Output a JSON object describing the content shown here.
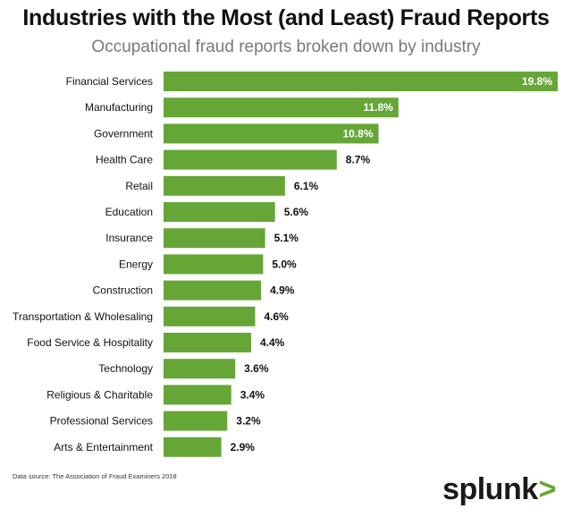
{
  "title": "Industries with the Most (and Least) Fraud Reports",
  "subtitle": "Occupational fraud reports broken down by industry",
  "source": "Data source: The Association of Fraud Examiners 2018",
  "logo": {
    "text": "splunk",
    "chevron": ">"
  },
  "colors": {
    "bar": "#65a637",
    "label_inside": "#ffffff",
    "label_outside": "#111111"
  },
  "chart_data": {
    "type": "bar",
    "orientation": "horizontal",
    "unit": "%",
    "categories": [
      "Financial Services",
      "Manufacturing",
      "Government",
      "Health Care",
      "Retail",
      "Education",
      "Insurance",
      "Energy",
      "Construction",
      "Transportation & Wholesaling",
      "Food Service & Hospitality",
      "Technology",
      "Religious & Charitable",
      "Professional Services",
      "Arts & Entertainment"
    ],
    "values": [
      19.8,
      11.8,
      10.8,
      8.7,
      6.1,
      5.6,
      5.1,
      5.0,
      4.9,
      4.6,
      4.4,
      3.6,
      3.4,
      3.2,
      2.9
    ],
    "labels": [
      "19.8%",
      "11.8%",
      "10.8%",
      "8.7%",
      "6.1%",
      "5.6%",
      "5.1%",
      "5.0%",
      "4.9%",
      "4.6%",
      "4.4%",
      "3.6%",
      "3.4%",
      "3.2%",
      "2.9%"
    ],
    "xlim": [
      0,
      19.8
    ],
    "grid": false
  }
}
